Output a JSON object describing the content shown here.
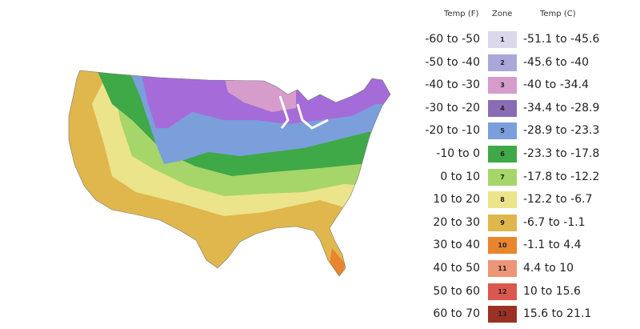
{
  "legend": {
    "headers": {
      "temp_f": "Temp (F)",
      "zone": "Zone",
      "temp_c": "Temp (C)"
    },
    "zones": [
      {
        "zone": "1",
        "temp_f": "-60 to -50",
        "temp_c": "-51.1 to -45.6",
        "color": "#dcd8ec"
      },
      {
        "zone": "2",
        "temp_f": "-50 to -40",
        "temp_c": "-45.6 to -40",
        "color": "#a9a8d8"
      },
      {
        "zone": "3",
        "temp_f": "-40 to -30",
        "temp_c": "-40 to -34.4",
        "color": "#d59ccc"
      },
      {
        "zone": "4",
        "temp_f": "-30 to -20",
        "temp_c": "-34.4 to -28.9",
        "color": "#8a6cb4"
      },
      {
        "zone": "5",
        "temp_f": "-20 to -10",
        "temp_c": "-28.9 to -23.3",
        "color": "#7a9fdb"
      },
      {
        "zone": "6",
        "temp_f": "-10 to 0",
        "temp_c": "-23.3 to -17.8",
        "color": "#3fa847"
      },
      {
        "zone": "7",
        "temp_f": "0 to 10",
        "temp_c": "-17.8 to -12.2",
        "color": "#a6d56a"
      },
      {
        "zone": "8",
        "temp_f": "10 to 20",
        "temp_c": "-12.2 to -6.7",
        "color": "#ece48a"
      },
      {
        "zone": "9",
        "temp_f": "20 to 30",
        "temp_c": "-6.7 to -1.1",
        "color": "#e0b74c"
      },
      {
        "zone": "10",
        "temp_f": "30 to 40",
        "temp_c": "-1.1 to 4.4",
        "color": "#e8852e"
      },
      {
        "zone": "11",
        "temp_f": "40 to 50",
        "temp_c": "4.4 to 10",
        "color": "#ec9577"
      },
      {
        "zone": "12",
        "temp_f": "50 to 60",
        "temp_c": "10 to 15.6",
        "color": "#dc574d"
      },
      {
        "zone": "13",
        "temp_f": "60 to 70",
        "temp_c": "15.6 to 21.1",
        "color": "#9b3124"
      }
    ]
  }
}
